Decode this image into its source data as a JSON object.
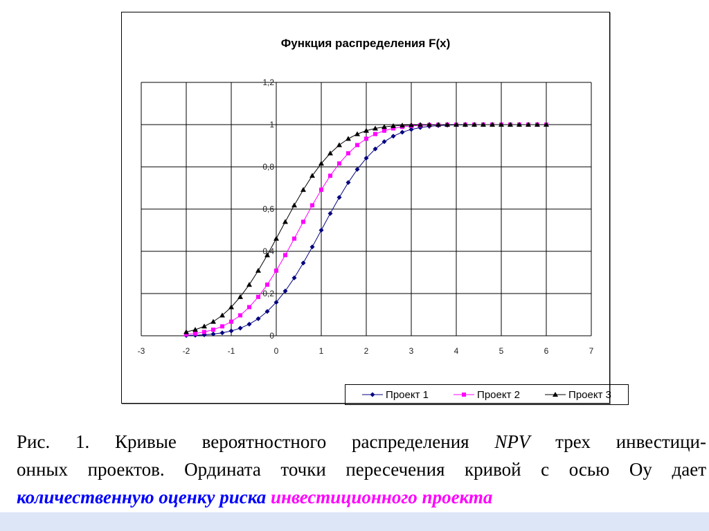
{
  "chart_data": {
    "type": "line",
    "title": "Функция распределения F(x)",
    "xlim": [
      -3,
      7
    ],
    "ylim": [
      0,
      1.2
    ],
    "xticks": [
      "-3",
      "-2",
      "-1",
      "0",
      "1",
      "2",
      "3",
      "4",
      "5",
      "6",
      "7"
    ],
    "yticks": [
      "0",
      "0,2",
      "0,4",
      "0,6",
      "0,8",
      "1",
      "1,2"
    ],
    "grid": true,
    "legend": "bottom",
    "x_start": -2,
    "x_step": 0.2,
    "series": [
      {
        "name": "Проект 1",
        "color": "#000080",
        "marker": "diamond",
        "values": [
          0.0013,
          0.0026,
          0.0047,
          0.0082,
          0.0139,
          0.0228,
          0.0359,
          0.0548,
          0.0808,
          0.1151,
          0.1587,
          0.2119,
          0.2743,
          0.3446,
          0.4207,
          0.5,
          0.5793,
          0.6554,
          0.7257,
          0.7881,
          0.8413,
          0.8849,
          0.9192,
          0.9452,
          0.9641,
          0.9772,
          0.9861,
          0.9918,
          0.9953,
          0.9974,
          0.9987,
          0.9993,
          0.9997,
          0.9998,
          0.9999,
          0.9999,
          1,
          1,
          1,
          1,
          1
        ]
      },
      {
        "name": "Проект 2",
        "color": "#ff00ff",
        "marker": "square",
        "values": [
          0.0062,
          0.0107,
          0.0179,
          0.0287,
          0.0446,
          0.0668,
          0.0968,
          0.1357,
          0.1841,
          0.242,
          0.3085,
          0.3821,
          0.4602,
          0.5398,
          0.6179,
          0.6915,
          0.758,
          0.8159,
          0.8643,
          0.9032,
          0.9332,
          0.9554,
          0.9713,
          0.9821,
          0.9893,
          0.9938,
          0.9965,
          0.9981,
          0.999,
          0.9995,
          0.9998,
          1,
          1,
          1,
          1,
          1,
          1,
          1,
          1,
          1,
          1
        ]
      },
      {
        "name": "Проект 3",
        "color": "#000000",
        "marker": "triangle",
        "values": [
          0.0179,
          0.0287,
          0.0446,
          0.0668,
          0.0968,
          0.1357,
          0.1841,
          0.242,
          0.3085,
          0.3821,
          0.4602,
          0.5398,
          0.6179,
          0.6915,
          0.758,
          0.8159,
          0.8643,
          0.9032,
          0.9332,
          0.9554,
          0.9713,
          0.9821,
          0.9893,
          0.9938,
          0.9965,
          0.9981,
          0.999,
          0.9995,
          0.9998,
          1,
          1,
          1,
          1,
          1,
          1,
          1,
          1,
          1,
          1,
          1,
          1
        ]
      }
    ]
  },
  "caption": {
    "line1a": "Рис. 1. Кривые вероятностного распределения ",
    "line1b": "NPV",
    "line1c": " трех инвестици-",
    "line2": "онных проектов. Ордината точки пересечения кривой с осью Оу дает",
    "line3a": "количественную оценку риска",
    "line3b": " инвестиционного проекта",
    "color_a": "#0000ff",
    "color_b": "#ff00ff"
  }
}
